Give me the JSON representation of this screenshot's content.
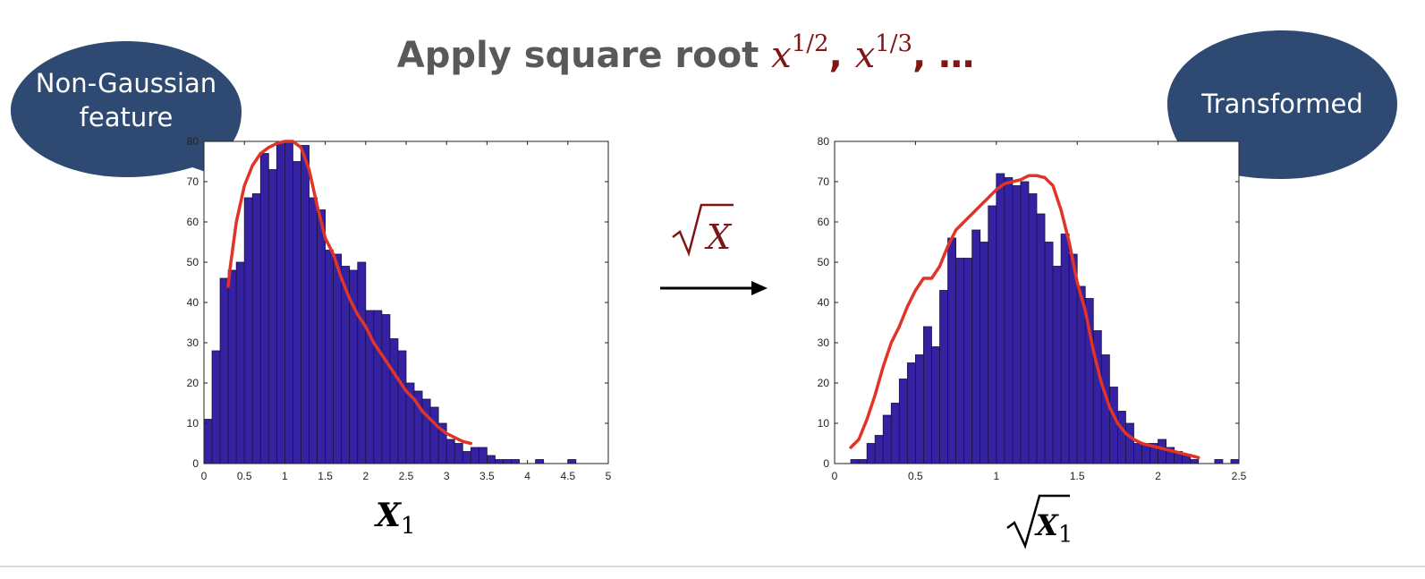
{
  "title": {
    "text": "Apply square root",
    "terms": [
      {
        "base": "x",
        "exp": "1/2",
        "suffix": ", "
      },
      {
        "base": "x",
        "exp": "1/3",
        "suffix": ", "
      }
    ],
    "ellipsis": "…"
  },
  "bubbles": {
    "left_lines": [
      "Non-Gaussian",
      "feature"
    ],
    "right_lines": [
      "Transformed"
    ],
    "fill": "#2e4a72"
  },
  "transform_label": {
    "radicand": "X"
  },
  "colors": {
    "bar_fill": "#3522a3",
    "bar_edge": "#1b1240",
    "curve": "#e13327",
    "math": "#7f1515",
    "title": "#595959"
  },
  "chart_data": [
    {
      "type": "bar",
      "xlabel": {
        "symbol": "X",
        "subscript": "1"
      },
      "xlim": [
        0,
        5
      ],
      "ylim": [
        0,
        80
      ],
      "xticks": [
        "0",
        "0.5",
        "1",
        "1.5",
        "2",
        "2.5",
        "3",
        "3.5",
        "4",
        "4.5",
        "5"
      ],
      "yticks": [
        "0",
        "10",
        "20",
        "30",
        "40",
        "50",
        "60",
        "70",
        "80"
      ],
      "bin_width": 0.1,
      "x": [
        0.05,
        0.15,
        0.25,
        0.35,
        0.45,
        0.55,
        0.65,
        0.75,
        0.85,
        0.95,
        1.05,
        1.15,
        1.25,
        1.35,
        1.45,
        1.55,
        1.65,
        1.75,
        1.85,
        1.95,
        2.05,
        2.15,
        2.25,
        2.35,
        2.45,
        2.55,
        2.65,
        2.75,
        2.85,
        2.95,
        3.05,
        3.15,
        3.25,
        3.35,
        3.45,
        3.55,
        3.65,
        3.75,
        3.85,
        3.95,
        4.05,
        4.15,
        4.25,
        4.35,
        4.45,
        4.55
      ],
      "values": [
        11,
        28,
        46,
        48,
        50,
        66,
        67,
        77,
        73,
        80,
        80,
        75,
        79,
        66,
        63,
        53,
        52,
        49,
        48,
        50,
        38,
        38,
        37,
        31,
        28,
        20,
        18,
        16,
        14,
        10,
        6,
        5,
        3,
        4,
        4,
        2,
        1,
        1,
        1,
        0,
        0,
        1,
        0,
        0,
        0,
        1
      ],
      "fit_curve": {
        "x": [
          0.3,
          0.32,
          0.4,
          0.5,
          0.6,
          0.7,
          0.8,
          0.9,
          1.0,
          1.1,
          1.2,
          1.3,
          1.4,
          1.5,
          1.6,
          1.7,
          1.8,
          1.9,
          2.0,
          2.1,
          2.2,
          2.3,
          2.4,
          2.5,
          2.6,
          2.7,
          2.8,
          2.9,
          3.0,
          3.1,
          3.2,
          3.3
        ],
        "y": [
          44,
          48,
          60,
          69,
          74,
          77,
          78.5,
          79.5,
          80,
          80,
          78.5,
          73,
          64,
          56,
          52,
          46,
          41,
          37,
          34,
          30,
          27,
          24,
          21,
          18,
          16,
          13,
          11,
          9,
          7.5,
          6.5,
          5.5,
          5
        ]
      }
    },
    {
      "type": "bar",
      "xlabel": {
        "symbol": "X",
        "subscript": "1",
        "sqrt": true
      },
      "xlim": [
        0,
        2.5
      ],
      "ylim": [
        0,
        80
      ],
      "xticks": [
        "0",
        "0.5",
        "1",
        "1.5",
        "2",
        "2.5"
      ],
      "yticks": [
        "0",
        "10",
        "20",
        "30",
        "40",
        "50",
        "60",
        "70",
        "80"
      ],
      "bin_width": 0.05,
      "x": [
        0.125,
        0.175,
        0.225,
        0.275,
        0.325,
        0.375,
        0.425,
        0.475,
        0.525,
        0.575,
        0.625,
        0.675,
        0.725,
        0.775,
        0.825,
        0.875,
        0.925,
        0.975,
        1.025,
        1.075,
        1.125,
        1.175,
        1.225,
        1.275,
        1.325,
        1.375,
        1.425,
        1.475,
        1.525,
        1.575,
        1.625,
        1.675,
        1.725,
        1.775,
        1.825,
        1.875,
        1.925,
        1.975,
        2.025,
        2.075,
        2.125,
        2.175,
        2.225,
        2.275,
        2.325,
        2.375,
        2.425,
        2.475
      ],
      "values": [
        1,
        1,
        5,
        7,
        12,
        15,
        21,
        25,
        27,
        34,
        29,
        43,
        56,
        51,
        51,
        58,
        55,
        64,
        72,
        71,
        69,
        70,
        67,
        62,
        55,
        49,
        57,
        52,
        44,
        41,
        33,
        27,
        19,
        13,
        10,
        5,
        5,
        5,
        6,
        4,
        3,
        2,
        1,
        0,
        0,
        1,
        0,
        1
      ],
      "fit_curve": {
        "x": [
          0.1,
          0.15,
          0.2,
          0.25,
          0.3,
          0.35,
          0.4,
          0.45,
          0.5,
          0.55,
          0.6,
          0.65,
          0.7,
          0.75,
          0.8,
          0.85,
          0.9,
          0.95,
          1.0,
          1.05,
          1.1,
          1.15,
          1.2,
          1.25,
          1.3,
          1.35,
          1.4,
          1.45,
          1.5,
          1.55,
          1.6,
          1.65,
          1.7,
          1.75,
          1.8,
          1.85,
          1.9,
          1.95,
          2.0,
          2.05,
          2.1,
          2.15,
          2.2,
          2.25
        ],
        "y": [
          4,
          6,
          11,
          17,
          24,
          30,
          34,
          39,
          43,
          46,
          46,
          49,
          54,
          58,
          60,
          62,
          64,
          66,
          68,
          69.5,
          70,
          70.5,
          71.5,
          71.5,
          71,
          69,
          63,
          55,
          45,
          38,
          28,
          20,
          14,
          10,
          7.5,
          6,
          5,
          4.5,
          4,
          3.5,
          3,
          2.5,
          2,
          1.5
        ]
      }
    }
  ]
}
